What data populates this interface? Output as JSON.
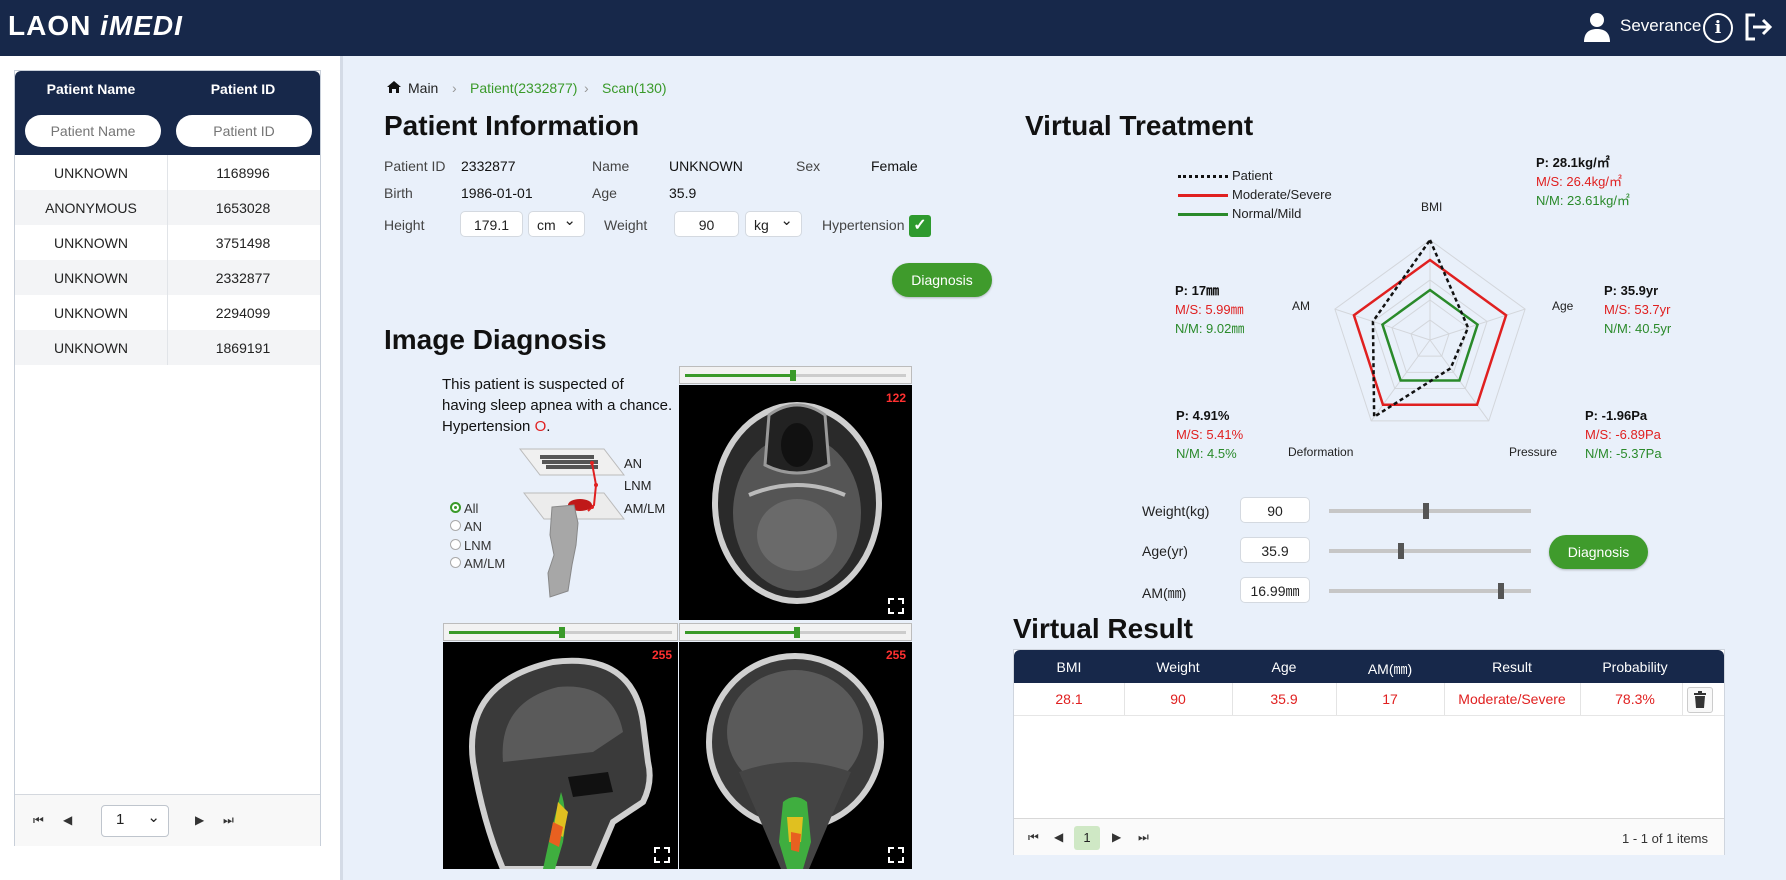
{
  "app": {
    "logo_part1": "LAON ",
    "logo_part2": "iMEDI",
    "user": "Severance"
  },
  "patient_list": {
    "col_name": "Patient Name",
    "col_id": "Patient ID",
    "name_placeholder": "Patient Name",
    "id_placeholder": "Patient ID",
    "rows": [
      {
        "name": "UNKNOWN",
        "id": "1168996"
      },
      {
        "name": "ANONYMOUS",
        "id": "1653028"
      },
      {
        "name": "UNKNOWN",
        "id": "3751498"
      },
      {
        "name": "UNKNOWN",
        "id": "2332877"
      },
      {
        "name": "UNKNOWN",
        "id": "2294099"
      },
      {
        "name": "UNKNOWN",
        "id": "1869191"
      }
    ],
    "page": "1"
  },
  "breadcrumb": {
    "main": "Main",
    "patient": "Patient(2332877)",
    "scan": "Scan(130)"
  },
  "patient_info": {
    "title": "Patient Information",
    "id_label": "Patient ID",
    "id": "2332877",
    "name_label": "Name",
    "name": "UNKNOWN",
    "sex_label": "Sex",
    "sex": "Female",
    "birth_label": "Birth",
    "birth": "1986-01-01",
    "age_label": "Age",
    "age": "35.9",
    "height_label": "Height",
    "height": "179.1",
    "height_unit": "cm",
    "weight_label": "Weight",
    "weight": "90",
    "weight_unit": "kg",
    "hypertension_label": "Hypertension",
    "hypertension_checked": true,
    "diagnosis_button": "Diagnosis"
  },
  "image_diagnosis": {
    "title": "Image Diagnosis",
    "text_line1": "This patient is suspected of",
    "text_line2": "having sleep apnea with a chance.",
    "text_line3_prefix": "Hypertension ",
    "text_line3_mark": "O",
    "text_line3_suffix": ".",
    "levels": [
      "AN",
      "LNM",
      "AM/LM"
    ],
    "radio_options": [
      "All",
      "AN",
      "LNM",
      "AM/LM"
    ],
    "selected_option": "All",
    "views": [
      {
        "slice": "122",
        "slider_fraction": 0.48
      },
      {
        "slice": "255",
        "slider_fraction": 0.5
      },
      {
        "slice": "255",
        "slider_fraction": 0.5
      }
    ]
  },
  "virtual_treatment": {
    "title": "Virtual Treatment",
    "legend": [
      {
        "name": "Patient",
        "color": "#111111",
        "dashed": true
      },
      {
        "name": "Moderate/Severe",
        "color": "#e02020",
        "dashed": false
      },
      {
        "name": "Normal/Mild",
        "color": "#2a8a2a",
        "dashed": false
      }
    ],
    "axes": [
      {
        "name": "BMI",
        "p": "P: 28.1kg/㎡",
        "ms": "M/S: 26.4kg/㎡",
        "nm": "N/M: 23.61kg/㎡"
      },
      {
        "name": "Age",
        "p": "P: 35.9yr",
        "ms": "M/S: 53.7yr",
        "nm": "N/M: 40.5yr"
      },
      {
        "name": "Pressure",
        "p": "P: -1.96Pa",
        "ms": "M/S: -6.89Pa",
        "nm": "N/M: -5.37Pa"
      },
      {
        "name": "Deformation",
        "p": "P: 4.91%",
        "ms": "M/S: 5.41%",
        "nm": "N/M: 4.5%"
      },
      {
        "name": "AM",
        "p": "P: 17㎜",
        "ms": "M/S: 5.99㎜",
        "nm": "N/M: 9.02㎜"
      }
    ],
    "radar_fractions": {
      "patient": [
        1.0,
        0.4,
        0.35,
        0.95,
        0.6
      ],
      "moderate_severe": [
        0.8,
        0.8,
        0.8,
        0.8,
        0.8
      ],
      "normal_mild": [
        0.5,
        0.5,
        0.5,
        0.5,
        0.5
      ]
    },
    "inputs": [
      {
        "label": "Weight(kg)",
        "value": "90",
        "fraction": 0.48
      },
      {
        "label": "Age(yr)",
        "value": "35.9",
        "fraction": 0.35
      },
      {
        "label": "AM(㎜)",
        "value": "16.99㎜",
        "fraction": 0.86
      }
    ],
    "diagnosis_button": "Diagnosis"
  },
  "virtual_result": {
    "title": "Virtual Result",
    "columns": [
      "BMI",
      "Weight",
      "Age",
      "AM(㎜)",
      "Result",
      "Probability"
    ],
    "rows": [
      {
        "bmi": "28.1",
        "weight": "90",
        "age": "35.9",
        "am": "17",
        "result": "Moderate/Severe",
        "probability": "78.3%"
      }
    ],
    "page": "1",
    "items_text": "1 - 1 of 1 items"
  }
}
